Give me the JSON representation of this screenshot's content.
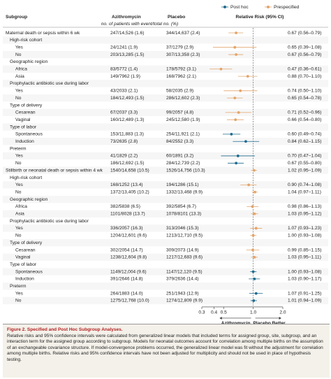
{
  "chart_data": {
    "type": "forest",
    "columns": [
      "Subgroup",
      "Azithromycin",
      "Placebo",
      "Relative Risk (95% CI)"
    ],
    "subheader": "no. of patients with event/total no. (%)",
    "series": [
      {
        "name": "Post hoc",
        "color": "#1f6b8e"
      },
      {
        "name": "Prespecified",
        "color": "#e3a46a"
      }
    ],
    "xscale": "log",
    "xlim": [
      0.3,
      2.0
    ],
    "xticks": [
      0.3,
      0.4,
      0.5,
      {
        "value": 1.0,
        "label": "1.0"
      },
      {
        "value": 2.0,
        "label": "2.0"
      }
    ],
    "reference": {
      "value": 1.0
    },
    "direction_labels": [
      "Azithromycin Better",
      "Placebo Better"
    ],
    "outcomes": [
      {
        "label": "Maternal death or sepsis within 6 wk",
        "azithromycin": "247/14,526 (1.6)",
        "placebo": "344/14,637 (2.4)",
        "estimate": 0.67,
        "lower": 0.56,
        "upper": 0.79,
        "ci_label": "0.67 (0.56–0.79)",
        "group": 1,
        "subgroups": [
          {
            "label": "High-risk cohort",
            "rows": [
              {
                "label": "Yes",
                "azithromycin": "24/1241 (1.9)",
                "placebo": "37/1279 (2.9)",
                "estimate": 0.65,
                "lower": 0.39,
                "upper": 1.08,
                "ci_label": "0.65 (0.39–1.08)",
                "group": 1
              },
              {
                "label": "No",
                "azithromycin": "203/13,285 (1.5)",
                "placebo": "307/13,358 (2.3)",
                "estimate": 0.67,
                "lower": 0.56,
                "upper": 0.79,
                "ci_label": "0.67 (0.56–0.79)",
                "group": 1
              }
            ]
          },
          {
            "label": "Geographic region",
            "rows": [
              {
                "label": "Africa",
                "azithromycin": "83/5772 (1.4)",
                "placebo": "178/5792 (3.1)",
                "estimate": 0.47,
                "lower": 0.36,
                "upper": 0.61,
                "ci_label": "0.47 (0.36–0.61)",
                "group": 1
              },
              {
                "label": "Asia",
                "azithromycin": "149/7962 (1.9)",
                "placebo": "168/7962 (2.1)",
                "estimate": 0.88,
                "lower": 0.7,
                "upper": 1.1,
                "ci_label": "0.88 (0.70–1.10)",
                "group": 1
              }
            ]
          },
          {
            "label": "Prophylactic antibiotic use during labor",
            "rows": [
              {
                "label": "Yes",
                "azithromycin": "43/2033 (2.1)",
                "placebo": "58/2035 (2.9)",
                "estimate": 0.74,
                "lower": 0.5,
                "upper": 1.1,
                "ci_label": "0.74 (0.50–1.10)",
                "group": 1
              },
              {
                "label": "No",
                "azithromycin": "184/12,493 (1.5)",
                "placebo": "286/12,602 (2.3)",
                "estimate": 0.65,
                "lower": 0.54,
                "upper": 0.78,
                "ci_label": "0.65 (0.54–0.78)",
                "group": 1
              }
            ]
          },
          {
            "label": "Type of delivery",
            "rows": [
              {
                "label": "Cesarean",
                "azithromycin": "67/2037 (3.3)",
                "placebo": "99/2057 (4.8)",
                "estimate": 0.71,
                "lower": 0.52,
                "upper": 0.96,
                "ci_label": "0.71 (0.52–0.96)",
                "group": 1
              },
              {
                "label": "Vaginal",
                "azithromycin": "160/12,489 (1.3)",
                "placebo": "245/12,580 (1.9)",
                "estimate": 0.66,
                "lower": 0.54,
                "upper": 0.8,
                "ci_label": "0.66 (0.54–0.80)",
                "group": 1
              }
            ]
          },
          {
            "label": "Type of labor",
            "rows": [
              {
                "label": "Spontaneous",
                "azithromycin": "153/11,883 (1.3)",
                "placebo": "254/11,921 (2.1)",
                "estimate": 0.6,
                "lower": 0.49,
                "upper": 0.74,
                "ci_label": "0.60 (0.49–0.74)",
                "group": 0
              },
              {
                "label": "Induction",
                "azithromycin": "73/2635 (2.8)",
                "placebo": "84/2552 (3.3)",
                "estimate": 0.84,
                "lower": 0.62,
                "upper": 1.15,
                "ci_label": "0.84 (0.62–1.15)",
                "group": 0
              }
            ]
          },
          {
            "label": "Preterm",
            "rows": [
              {
                "label": "Yes",
                "azithromycin": "41/1829 (2.2)",
                "placebo": "60/1891 (3.2)",
                "estimate": 0.7,
                "lower": 0.47,
                "upper": 1.04,
                "ci_label": "0.70 (0.47–1.04)",
                "group": 0
              },
              {
                "label": "No",
                "azithromycin": "186/12,692 (1.5)",
                "placebo": "284/12,739 (2.2)",
                "estimate": 0.67,
                "lower": 0.55,
                "upper": 0.8,
                "ci_label": "0.67 (0.55–0.80)",
                "group": 0
              }
            ]
          }
        ]
      },
      {
        "label": "Stillbirth or neonatal death or sepsis within 4 wk",
        "azithromycin": "1540/14,658 (10.5)",
        "placebo": "1526/14,756 (10.3)",
        "estimate": 1.02,
        "lower": 0.95,
        "upper": 1.09,
        "ci_label": "1.02 (0.95–1.09)",
        "group": 1,
        "subgroups": [
          {
            "label": "High-risk cohort",
            "rows": [
              {
                "label": "Yes",
                "azithromycin": "168/1252 (13.4)",
                "placebo": "194/1286 (15.1)",
                "estimate": 0.9,
                "lower": 0.74,
                "upper": 1.08,
                "ci_label": "0.90 (0.74–1.08)",
                "group": 1
              },
              {
                "label": "No",
                "azithromycin": "1372/13,405 (10.2)",
                "placebo": "1332/13,468 (9.9)",
                "estimate": 1.04,
                "lower": 0.97,
                "upper": 1.11,
                "ci_label": "1.04 (0.97–1.11)",
                "group": 1
              }
            ]
          },
          {
            "label": "Geographic region",
            "rows": [
              {
                "label": "Africa",
                "azithromycin": "382/5838 (6.5)",
                "placebo": "392/5854 (6.7)",
                "estimate": 0.98,
                "lower": 0.86,
                "upper": 1.13,
                "ci_label": "0.98 (0.86–1.13)",
                "group": 1
              },
              {
                "label": "Asia",
                "azithromycin": "1101/8028 (13.7)",
                "placebo": "1078/8101 (13.3)",
                "estimate": 1.03,
                "lower": 0.95,
                "upper": 1.12,
                "ci_label": "1.03 (0.95–1.12)",
                "group": 1
              }
            ]
          },
          {
            "label": "Prophylactic antibiotic use during labor",
            "rows": [
              {
                "label": "Yes",
                "azithromycin": "336/2057 (16.3)",
                "placebo": "313/2046 (15.3)",
                "estimate": 1.07,
                "lower": 0.93,
                "upper": 1.23,
                "ci_label": "1.07 (0.93–1.23)",
                "group": 1
              },
              {
                "label": "No",
                "azithromycin": "1204/12,601 (9.6)",
                "placebo": "1213/12,710 (9.5)",
                "estimate": 1.0,
                "lower": 0.93,
                "upper": 1.08,
                "ci_label": "1.00 (0.93–1.08)",
                "group": 1
              }
            ]
          },
          {
            "label": "Type of delivery",
            "rows": [
              {
                "label": "Cesarean",
                "azithromycin": "302/2054 (14.7)",
                "placebo": "309/2073 (14.9)",
                "estimate": 0.99,
                "lower": 0.85,
                "upper": 1.15,
                "ci_label": "0.99 (0.85–1.15)",
                "group": 1
              },
              {
                "label": "Vaginal",
                "azithromycin": "1238/12,604 (9.8)",
                "placebo": "1217/12,683 (9.6)",
                "estimate": 1.03,
                "lower": 0.95,
                "upper": 1.11,
                "ci_label": "1.03 (0.95–1.11)",
                "group": 1
              }
            ]
          },
          {
            "label": "Type of labor",
            "rows": [
              {
                "label": "Spontaneous",
                "azithromycin": "1149/12,004 (9.6)",
                "placebo": "1147/12,120 (9.5)",
                "estimate": 1.0,
                "lower": 0.93,
                "upper": 1.08,
                "ci_label": "1.00 (0.93–1.08)",
                "group": 0
              },
              {
                "label": "Induction",
                "azithromycin": "391/2646 (14.8)",
                "placebo": "379/2636 (14.4)",
                "estimate": 1.03,
                "lower": 0.9,
                "upper": 1.17,
                "ci_label": "1.03 (0.90–1.17)",
                "group": 0
              }
            ]
          },
          {
            "label": "Preterm",
            "rows": [
              {
                "label": "Yes",
                "azithromycin": "264/1883 (14.0)",
                "placebo": "251/1943 (12.9)",
                "estimate": 1.07,
                "lower": 0.91,
                "upper": 1.25,
                "ci_label": "1.07 (0.91–1.25)",
                "group": 0
              },
              {
                "label": "No",
                "azithromycin": "1275/12,768 (10.0)",
                "placebo": "1274/12,809 (9.9)",
                "estimate": 1.01,
                "lower": 0.94,
                "upper": 1.09,
                "ci_label": "1.01 (0.94–1.09)",
                "group": 0
              }
            ]
          }
        ]
      }
    ]
  },
  "caption": {
    "title": "Figure 2. Specified and Post Hoc Subgroup Analyses.",
    "text": "Relative risks and 95% confidence intervals were calculated from generalized linear models that included terms for assigned group, site, subgroup, and an interaction term for the assigned group according to subgroup. Models for neonatal outcomes account for correlation among multiple births on the assumption of an exchangeable covariance structure. If model-convergence problems occurred, the generalized linear model was fit without the adjustment for correlation among multiple births. Relative risks and 95% confidence intervals have not been adjusted for multiplicity and should not be used in place of hypothesis testing."
  }
}
